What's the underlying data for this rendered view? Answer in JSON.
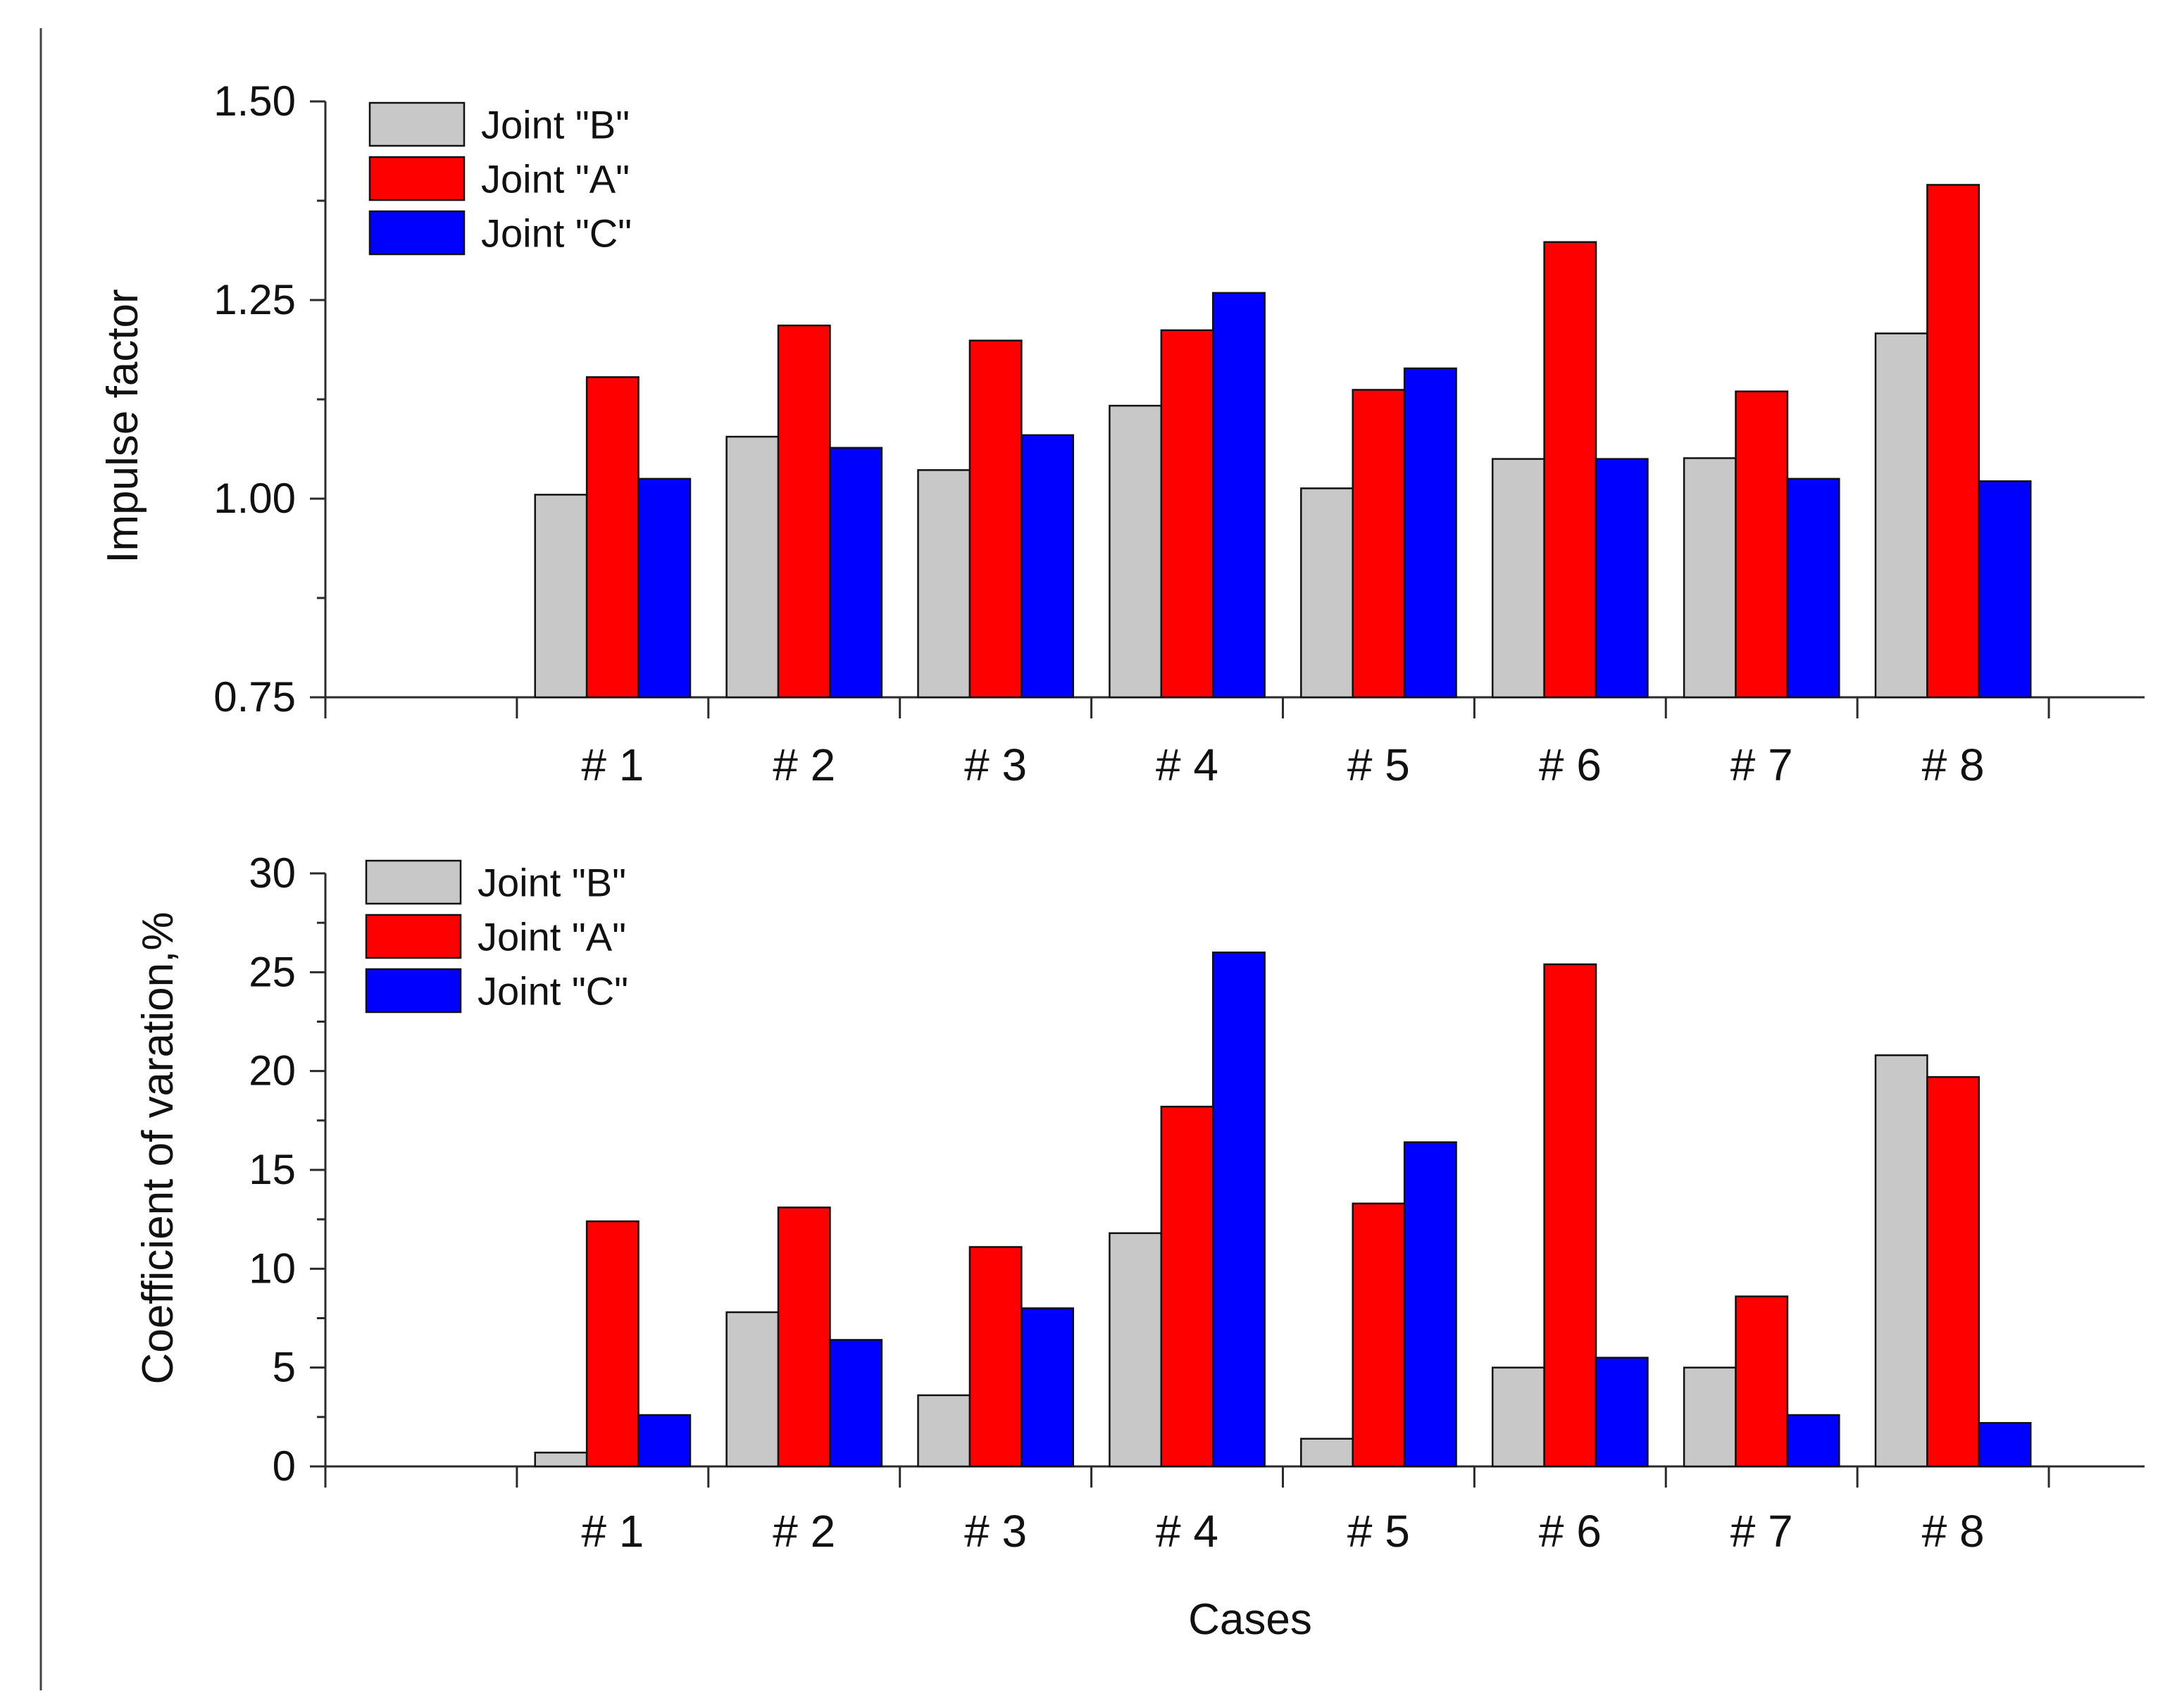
{
  "chart_data": [
    {
      "type": "bar",
      "title": "",
      "xlabel": "",
      "ylabel": "Impulse factor",
      "ylim": [
        0.75,
        1.5
      ],
      "yticks": [
        0.75,
        1.0,
        1.25,
        1.5
      ],
      "ytick_labels": [
        "0.75",
        "1.00",
        "1.25",
        "1.50"
      ],
      "categories": [
        "# 1",
        "# 2",
        "# 3",
        "# 4",
        "# 5",
        "# 6",
        "# 7",
        "# 8"
      ],
      "series": [
        {
          "name": "Joint \"B\"",
          "color": "#c8c8c8",
          "values": [
            1.005,
            1.078,
            1.036,
            1.117,
            1.013,
            1.05,
            1.051,
            1.208
          ]
        },
        {
          "name": "Joint \"A\"",
          "color": "#ff0000",
          "values": [
            1.153,
            1.218,
            1.199,
            1.212,
            1.137,
            1.323,
            1.135,
            1.395
          ]
        },
        {
          "name": "Joint \"C\"",
          "color": "#0000ff",
          "values": [
            1.025,
            1.064,
            1.08,
            1.259,
            1.164,
            1.05,
            1.025,
            1.022
          ]
        }
      ],
      "legend": {
        "position": "top-left",
        "entries": [
          "Joint \"B\"",
          "Joint \"A\"",
          "Joint \"C\""
        ]
      },
      "grid": false
    },
    {
      "type": "bar",
      "title": "",
      "xlabel": "Cases",
      "ylabel": "Coefficient of varation,%",
      "ylim": [
        0,
        30
      ],
      "yticks": [
        0,
        5,
        10,
        15,
        20,
        25,
        30
      ],
      "ytick_labels": [
        "0",
        "5",
        "10",
        "15",
        "20",
        "25",
        "30"
      ],
      "categories": [
        "# 1",
        "# 2",
        "# 3",
        "# 4",
        "# 5",
        "# 6",
        "# 7",
        "# 8"
      ],
      "series": [
        {
          "name": "Joint \"B\"",
          "color": "#c8c8c8",
          "values": [
            0.7,
            7.8,
            3.6,
            11.8,
            1.4,
            5.0,
            5.0,
            20.8
          ]
        },
        {
          "name": "Joint \"A\"",
          "color": "#ff0000",
          "values": [
            12.4,
            13.1,
            11.1,
            18.2,
            13.3,
            25.4,
            8.6,
            19.7
          ]
        },
        {
          "name": "Joint \"C\"",
          "color": "#0000ff",
          "values": [
            2.6,
            6.4,
            8.0,
            26.0,
            16.4,
            5.5,
            2.6,
            2.2
          ]
        }
      ],
      "legend": {
        "position": "top-left",
        "entries": [
          "Joint \"B\"",
          "Joint \"A\"",
          "Joint \"C\""
        ]
      },
      "grid": false
    }
  ]
}
